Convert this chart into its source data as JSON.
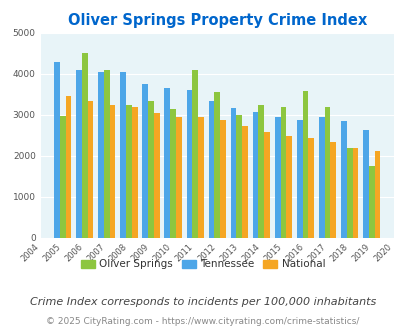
{
  "title": "Oliver Springs Property Crime Index",
  "years": [
    2004,
    2005,
    2006,
    2007,
    2008,
    2009,
    2010,
    2011,
    2012,
    2013,
    2014,
    2015,
    2016,
    2017,
    2018,
    2019,
    2020
  ],
  "oliver_springs": [
    null,
    2980,
    4500,
    4100,
    3250,
    3350,
    3150,
    4100,
    3550,
    3000,
    3250,
    3200,
    3580,
    3200,
    2200,
    1740,
    null
  ],
  "tennessee": [
    null,
    4300,
    4100,
    4050,
    4040,
    3750,
    3650,
    3600,
    3350,
    3170,
    3060,
    2950,
    2880,
    2950,
    2840,
    2630,
    null
  ],
  "national": [
    null,
    3450,
    3350,
    3250,
    3200,
    3040,
    2950,
    2940,
    2870,
    2720,
    2590,
    2490,
    2440,
    2340,
    2190,
    2110,
    null
  ],
  "color_oliver": "#8dc63f",
  "color_tennessee": "#4da6e8",
  "color_national": "#f5a623",
  "background_chart": "#e8f4f8",
  "ylim": [
    0,
    5000
  ],
  "yticks": [
    0,
    1000,
    2000,
    3000,
    4000,
    5000
  ],
  "legend_labels": [
    "Oliver Springs",
    "Tennessee",
    "National"
  ],
  "footnote1": "Crime Index corresponds to incidents per 100,000 inhabitants",
  "footnote2": "© 2025 CityRating.com - https://www.cityrating.com/crime-statistics/",
  "title_color": "#0066cc",
  "footnote1_color": "#444444",
  "footnote2_color": "#888888",
  "footnote1_size": 8.0,
  "footnote2_size": 6.5,
  "title_fontsize": 10.5
}
